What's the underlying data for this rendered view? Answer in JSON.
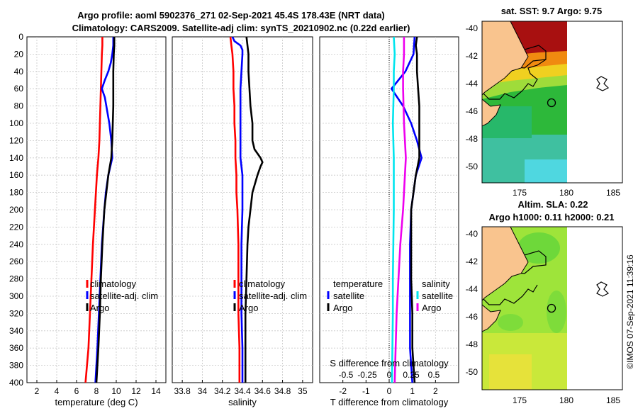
{
  "titles": {
    "line1": "Argo profile: aoml 5902376_271 02-Sep-2021 45.4S 178.43E (NRT data)",
    "line2": "Climatology: CARS2009. Satellite-adj clim: synTS_20210902.nc (0.22d earlier)",
    "map_sst": "sat. SST: 9.7 Argo: 9.75",
    "map_sla_1": "Altim. SLA: 0.22",
    "map_sla_2": "Argo h1000: 0.11 h2000: 0.21",
    "stamp": "©IMOS 07-Sep-2021 11:39:16"
  },
  "colors": {
    "climatology": "#ff0000",
    "satellite": "#0000ff",
    "argo": "#000000",
    "t_diff": "#00e5ee",
    "s_diff": "#ee00ee",
    "land": "#f9c48e"
  },
  "chart_data": [
    {
      "type": "line",
      "name": "temperature",
      "xlabel": "temperature (deg C)",
      "xlim": [
        1,
        15
      ],
      "xticks": [
        2,
        4,
        6,
        8,
        10,
        12,
        14
      ],
      "ylim": [
        400,
        0
      ],
      "yticks": [
        0,
        20,
        40,
        60,
        80,
        100,
        120,
        140,
        160,
        180,
        200,
        220,
        240,
        260,
        280,
        300,
        320,
        340,
        360,
        380,
        400
      ],
      "legend": [
        "climatology",
        "satellite-adj. clim",
        "Argo"
      ],
      "series": [
        {
          "name": "climatology",
          "color": "#ff0000",
          "depth": [
            0,
            10,
            20,
            40,
            60,
            80,
            100,
            120,
            140,
            160,
            180,
            200,
            240,
            280,
            320,
            360,
            400
          ],
          "values": [
            8.6,
            8.6,
            8.55,
            8.5,
            8.45,
            8.4,
            8.35,
            8.3,
            8.2,
            8.05,
            7.95,
            7.85,
            7.65,
            7.5,
            7.35,
            7.2,
            6.9
          ]
        },
        {
          "name": "satellite-adj. clim",
          "color": "#0000ff",
          "depth": [
            0,
            10,
            20,
            30,
            40,
            50,
            60,
            70,
            80,
            100,
            120,
            140,
            160,
            180,
            200,
            240,
            280,
            320,
            360,
            400
          ],
          "values": [
            9.7,
            9.7,
            9.6,
            9.45,
            9.2,
            8.85,
            8.55,
            8.85,
            9.0,
            9.3,
            9.5,
            9.6,
            9.2,
            8.95,
            8.8,
            8.55,
            8.4,
            8.25,
            8.1,
            7.9
          ]
        },
        {
          "name": "Argo",
          "color": "#000000",
          "depth": [
            0,
            10,
            20,
            40,
            60,
            80,
            100,
            120,
            140,
            160,
            180,
            200,
            240,
            280,
            320,
            360,
            400
          ],
          "values": [
            9.8,
            9.8,
            9.75,
            9.7,
            9.7,
            9.7,
            9.65,
            9.6,
            9.5,
            9.2,
            9.0,
            8.8,
            8.6,
            8.45,
            8.35,
            8.2,
            8.0
          ]
        }
      ]
    },
    {
      "type": "line",
      "name": "salinity",
      "xlabel": "salinity",
      "xlim": [
        33.7,
        35.1
      ],
      "xticks": [
        33.8,
        34.0,
        34.2,
        34.4,
        34.6,
        34.8,
        35.0
      ],
      "xtick_labels": [
        "33.8",
        "34",
        "34.2",
        "34.4",
        "34.6",
        "34.8",
        "35"
      ],
      "ylim": [
        400,
        0
      ],
      "legend": [
        "climatology",
        "satellite-adj. clim",
        "Argo"
      ],
      "series": [
        {
          "name": "climatology",
          "color": "#ff0000",
          "depth": [
            0,
            10,
            20,
            40,
            60,
            80,
            100,
            120,
            140,
            160,
            180,
            200,
            240,
            280,
            320,
            360,
            400
          ],
          "values": [
            34.28,
            34.29,
            34.3,
            34.31,
            34.31,
            34.32,
            34.32,
            34.33,
            34.33,
            34.34,
            34.34,
            34.35,
            34.36,
            34.36,
            34.36,
            34.37,
            34.37
          ]
        },
        {
          "name": "satellite-adj. clim",
          "color": "#0000ff",
          "depth": [
            0,
            5,
            10,
            15,
            20,
            40,
            60,
            80,
            100,
            120,
            140,
            160,
            180,
            200,
            240,
            280,
            320,
            360,
            400
          ],
          "values": [
            34.3,
            34.32,
            34.38,
            34.4,
            34.4,
            34.39,
            34.38,
            34.38,
            34.38,
            34.38,
            34.38,
            34.4,
            34.4,
            34.4,
            34.39,
            34.39,
            34.39,
            34.4,
            34.4
          ]
        },
        {
          "name": "Argo",
          "color": "#000000",
          "depth": [
            0,
            10,
            20,
            40,
            60,
            80,
            100,
            120,
            130,
            140,
            145,
            150,
            160,
            180,
            200,
            220,
            240,
            280,
            320,
            360,
            400
          ],
          "values": [
            34.44,
            34.45,
            34.46,
            34.46,
            34.47,
            34.48,
            34.5,
            34.5,
            34.52,
            34.58,
            34.6,
            34.58,
            34.55,
            34.5,
            34.48,
            34.46,
            34.45,
            34.44,
            34.43,
            34.43,
            34.43
          ]
        }
      ]
    },
    {
      "type": "line",
      "name": "differences",
      "xlabel": "T difference from climatology",
      "xlim": [
        -3,
        3
      ],
      "xticks": [
        -2,
        -1,
        0,
        1,
        2
      ],
      "xtick_labels": [
        "-2",
        "-1",
        "0",
        "1",
        "2"
      ],
      "s_axis_label": "S difference from climatology",
      "s_ticks": [
        "-0.5",
        "-0.25",
        "0",
        "0.25",
        "0.5"
      ],
      "ylim": [
        400,
        0
      ],
      "legend_t": [
        "temperature",
        "satellite",
        "Argo"
      ],
      "legend_s": [
        "salinity",
        "satellite",
        "Argo"
      ],
      "series": [
        {
          "name": "T satellite",
          "color": "#0000ff",
          "depth": [
            0,
            20,
            40,
            60,
            80,
            100,
            120,
            140,
            160,
            200,
            240,
            280,
            320,
            360,
            400
          ],
          "values": [
            1.1,
            1.05,
            0.7,
            0.1,
            0.6,
            0.95,
            1.2,
            1.4,
            1.15,
            0.95,
            0.9,
            0.9,
            0.9,
            0.9,
            1.0
          ]
        },
        {
          "name": "T Argo",
          "color": "#000000",
          "depth": [
            0,
            10,
            20,
            40,
            60,
            80,
            100,
            120,
            140,
            160,
            200,
            240,
            280,
            320,
            360,
            400
          ],
          "values": [
            1.2,
            1.15,
            1.2,
            1.2,
            1.25,
            1.3,
            1.3,
            1.3,
            1.3,
            1.15,
            0.95,
            0.95,
            0.95,
            1.0,
            1.0,
            1.1
          ]
        },
        {
          "name": "S satellite",
          "color": "#00e5ee",
          "depth": [
            0,
            20,
            40,
            60,
            100,
            140,
            200,
            280,
            320,
            400
          ],
          "values": [
            0.05,
            0.06,
            0.05,
            0.05,
            0.04,
            0.05,
            0.05,
            0.04,
            0.04,
            0.03
          ]
        },
        {
          "name": "S Argo",
          "color": "#ee00ee",
          "depth": [
            0,
            20,
            40,
            60,
            100,
            140,
            160,
            200,
            240,
            280,
            320,
            360,
            400
          ],
          "values": [
            0.16,
            0.16,
            0.15,
            0.15,
            0.16,
            0.18,
            0.17,
            0.15,
            0.12,
            0.1,
            0.08,
            0.07,
            0.06
          ]
        }
      ]
    },
    {
      "type": "heatmap",
      "name": "sst map",
      "title": "sat. SST: 9.7 Argo: 9.75",
      "xlim": [
        171,
        186
      ],
      "xticks": [
        "175",
        "180",
        "185"
      ],
      "ylim": [
        -51.3,
        -39.5
      ],
      "yticks": [
        "-40",
        "-42",
        "-44",
        "-46",
        "-48",
        "-50"
      ],
      "argo_position": [
        178.43,
        -45.4
      ]
    },
    {
      "type": "heatmap",
      "name": "sla map",
      "title": "Altim. SLA: 0.22",
      "xlim": [
        171,
        186
      ],
      "xticks": [
        "175",
        "180",
        "185"
      ],
      "ylim": [
        -51.3,
        -39.5
      ],
      "yticks": [
        "-40",
        "-42",
        "-44",
        "-46",
        "-48",
        "-50"
      ],
      "argo_position": [
        178.43,
        -45.4
      ]
    }
  ]
}
